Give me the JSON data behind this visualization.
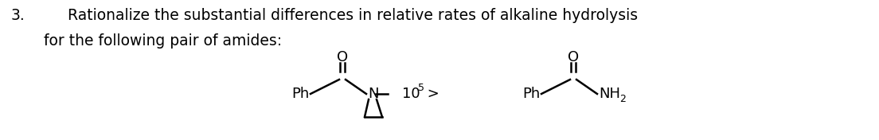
{
  "question_number": "3.",
  "line1": "Rationalize the substantial differences in relative rates of alkaline hydrolysis",
  "line2": "for the following pair of amides:",
  "fig_width": 11.04,
  "fig_height": 1.76,
  "dpi": 100,
  "bg_color": "#ffffff",
  "text_color": "#000000",
  "font_size_main": 13.5,
  "font_size_chem": 13.0,
  "font_size_sub": 9.0
}
